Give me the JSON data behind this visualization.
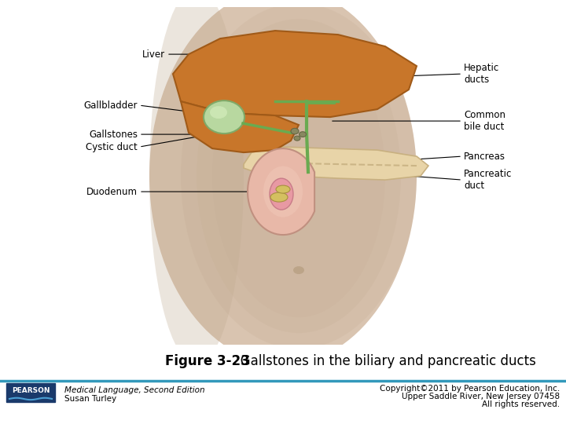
{
  "bg_color": "#ffffff",
  "figure_caption_bold": "Figure 3-23",
  "figure_caption_text": "   Gallstones in the biliary and pancreatic ducts",
  "caption_fontsize": 12,
  "divider_color": "#3399bb",
  "footer_left_line1": "Medical Language, Second Edition",
  "footer_left_line2": "Susan Turley",
  "footer_right_line1": "Copyright©2011 by Pearson Education, Inc.",
  "footer_right_line2": "Upper Saddle River, New Jersey 07458",
  "footer_right_line3": "All rights reserved.",
  "footer_fontsize": 7.5,
  "pearson_box_color": "#1a3a6b",
  "pearson_text": "PEARSON",
  "pearson_underline_color": "#4a9fd4",
  "torso_color": "#d9c4b0",
  "torso_edge": "#c0a890",
  "liver_color": "#c8762a",
  "liver_edge": "#a05a18",
  "gallbladder_color": "#a8c890",
  "gallbladder_edge": "#7aaa60",
  "pancreas_color": "#e8d4a8",
  "pancreas_edge": "#c8b080",
  "duodenum_pink": "#e8a090",
  "duodenum_edge": "#c07860",
  "duct_color": "#7aaa60",
  "stone_color": "#888860",
  "label_fontsize": 8.5
}
